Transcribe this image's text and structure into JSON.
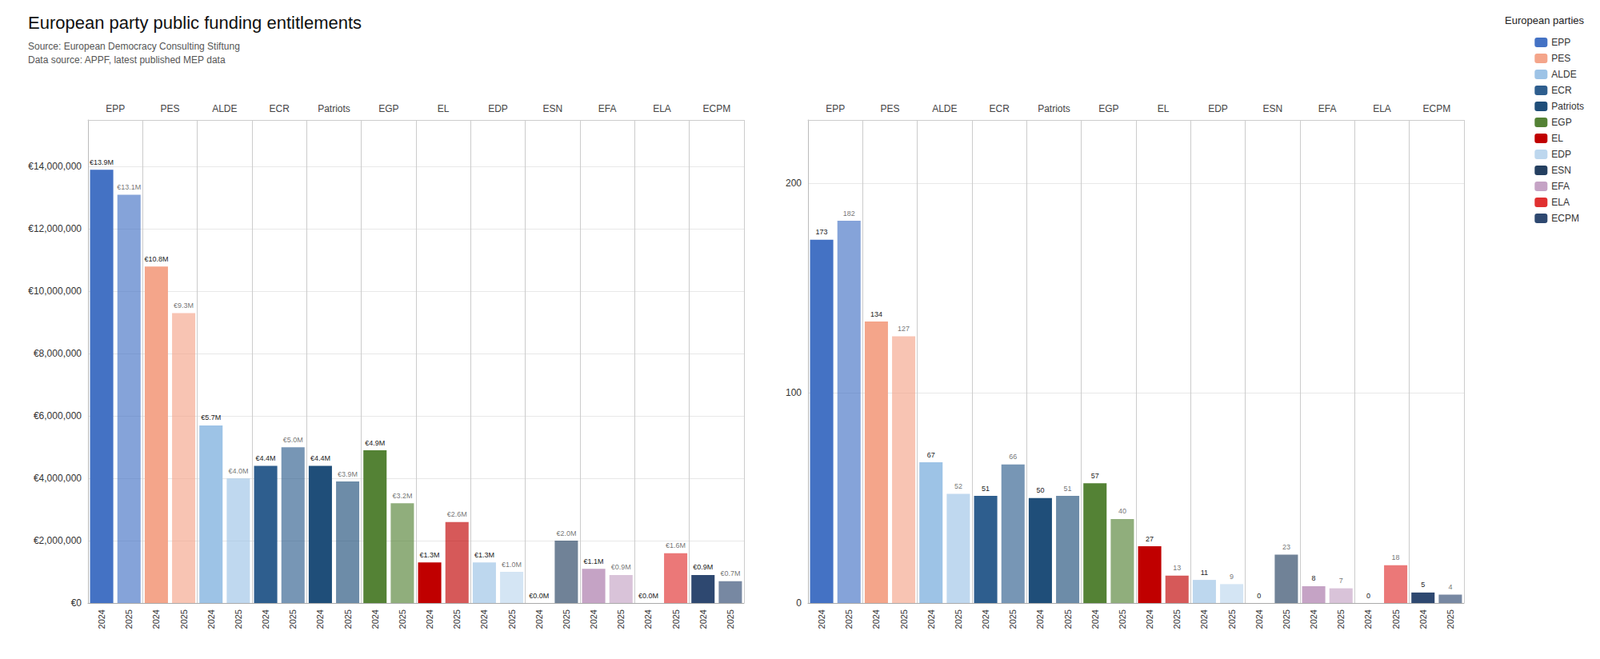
{
  "chart_data": [
    {
      "type": "bar",
      "title": "European party public funding entitlements",
      "subtitle": [
        "Source: European Democracy Consulting Stiftung",
        "Data source: APPF, latest published MEP data"
      ],
      "legend": "upper right",
      "legend_title": "European parties",
      "categories": [
        "EPP",
        "PES",
        "ALDE",
        "ECR",
        "Patriots",
        "EGP",
        "EL",
        "EDP",
        "ESN",
        "EFA",
        "ELA",
        "ECPM"
      ],
      "colors": [
        "#4472C4",
        "#F4A58A",
        "#9DC3E6",
        "#2E5E8E",
        "#1F4E79",
        "#548235",
        "#C00000",
        "#BDD7EE",
        "#243F60",
        "#C5A3C5",
        "#E03030",
        "#2E4870"
      ],
      "series": [
        {
          "name": "2024",
          "values": [
            13900000,
            10800000,
            5700000,
            4400000,
            4400000,
            4900000,
            1300000,
            1300000,
            0,
            1100000,
            0,
            900000
          ],
          "value_labels": [
            "€13.9M",
            "€10.8M",
            "€5.7M",
            "€4.4M",
            "€4.4M",
            "€4.9M",
            "€1.3M",
            "€1.3M",
            "€0.0M",
            "€1.1M",
            "€0.0M",
            "€0.9M"
          ]
        },
        {
          "name": "2025",
          "values": [
            13100000,
            9300000,
            4000000,
            5000000,
            3900000,
            3200000,
            2600000,
            1000000,
            2000000,
            900000,
            1600000,
            700000
          ],
          "value_labels": [
            "€13.1M",
            "€9.3M",
            "€4.0M",
            "€5.0M",
            "€3.9M",
            "€3.2M",
            "€2.6M",
            "€1.0M",
            "€2.0M",
            "€0.9M",
            "€1.6M",
            "€0.7M"
          ]
        }
      ],
      "ylim": [
        0,
        15500000
      ],
      "yticks": [
        {
          "value": 0,
          "label": "€0"
        },
        {
          "value": 2000000,
          "label": "€2,000,000"
        },
        {
          "value": 4000000,
          "label": "€4,000,000"
        },
        {
          "value": 6000000,
          "label": "€6,000,000"
        },
        {
          "value": 8000000,
          "label": "€8,000,000"
        },
        {
          "value": 10000000,
          "label": "€10,000,000"
        },
        {
          "value": 12000000,
          "label": "€12,000,000"
        },
        {
          "value": 14000000,
          "label": "€14,000,000"
        }
      ],
      "grid": true,
      "data_labels": true
    },
    {
      "type": "bar",
      "categories": [
        "EPP",
        "PES",
        "ALDE",
        "ECR",
        "Patriots",
        "EGP",
        "EL",
        "EDP",
        "ESN",
        "EFA",
        "ELA",
        "ECPM"
      ],
      "colors": [
        "#4472C4",
        "#F4A58A",
        "#9DC3E6",
        "#2E5E8E",
        "#1F4E79",
        "#548235",
        "#C00000",
        "#BDD7EE",
        "#243F60",
        "#C5A3C5",
        "#E03030",
        "#2E4870"
      ],
      "series": [
        {
          "name": "2024",
          "values": [
            173,
            134,
            67,
            51,
            50,
            57,
            27,
            11,
            0,
            8,
            0,
            5
          ]
        },
        {
          "name": "2025",
          "values": [
            182,
            127,
            52,
            66,
            51,
            40,
            13,
            9,
            23,
            7,
            18,
            4
          ]
        }
      ],
      "ylim": [
        0,
        230
      ],
      "yticks": [
        0,
        100,
        200
      ],
      "grid": true,
      "data_labels": true
    }
  ]
}
